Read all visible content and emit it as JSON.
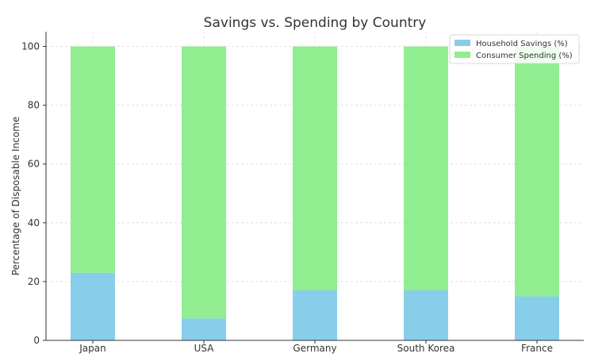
{
  "chart_data": {
    "type": "bar",
    "stacked": true,
    "title": "Savings vs. Spending by Country",
    "xlabel": "",
    "ylabel": "Percentage of Disposable Income",
    "categories": [
      "Japan",
      "USA",
      "Germany",
      "South Korea",
      "France"
    ],
    "series": [
      {
        "name": "Household Savings (%)",
        "color": "#87ceeb",
        "values": [
          23,
          7.5,
          17,
          17,
          15
        ]
      },
      {
        "name": "Consumer Spending (%)",
        "color": "#90ee90",
        "values": [
          77,
          92.5,
          83,
          83,
          85
        ]
      }
    ],
    "ylim": [
      0,
      105
    ],
    "yticks": [
      "0",
      "20",
      "40",
      "60",
      "80",
      "100"
    ],
    "grid": true,
    "legend": "top-right"
  }
}
